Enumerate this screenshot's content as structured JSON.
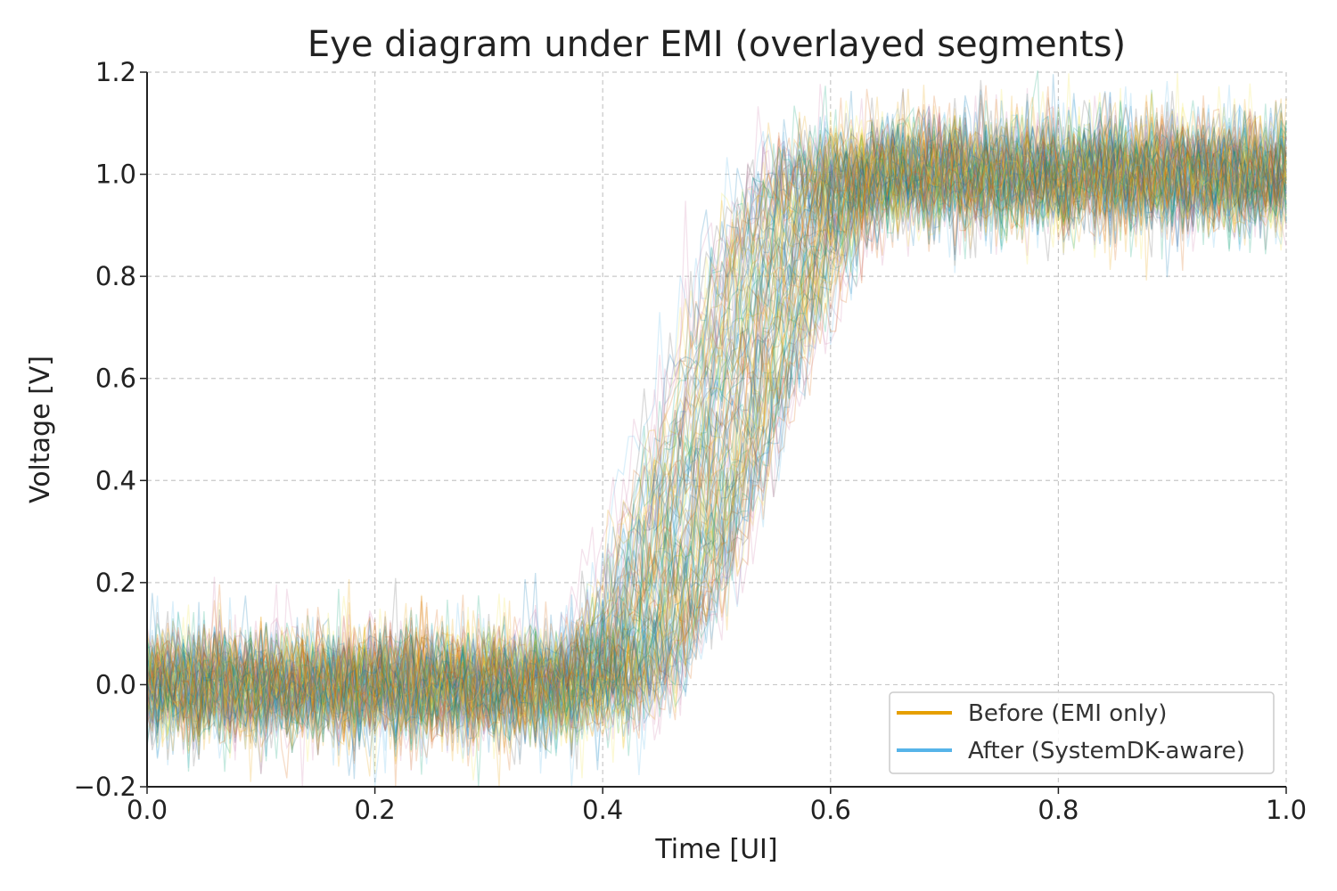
{
  "chart_data": {
    "type": "line",
    "title": "Eye diagram under EMI (overlayed segments)",
    "xlabel": "Time [UI]",
    "ylabel": "Voltage [V]",
    "xlim": [
      0.0,
      1.0
    ],
    "ylim": [
      -0.2,
      1.2
    ],
    "xticks": [
      "0.0",
      "0.2",
      "0.4",
      "0.6",
      "0.8",
      "1.0"
    ],
    "yticks": [
      "−0.2",
      "0.0",
      "0.2",
      "0.4",
      "0.6",
      "0.8",
      "1.0",
      "1.2"
    ],
    "grid": true,
    "legend_position": "lower-right",
    "series": [
      {
        "name": "Before (EMI only)",
        "color": "#E69F00",
        "segments": 60,
        "low_level": 0.0,
        "high_level": 1.0,
        "noise_std": 0.06,
        "transition_center_range": [
          0.44,
          0.56
        ],
        "transition_width": 0.12
      },
      {
        "name": "After (SystemDK-aware)",
        "color": "#56B4E9",
        "segments": 60,
        "low_level": 0.0,
        "high_level": 1.0,
        "noise_std": 0.05,
        "transition_center_range": [
          0.45,
          0.55
        ],
        "transition_width": 0.12
      }
    ],
    "trace_palette": [
      "#E69F00",
      "#56B4E9",
      "#009E73",
      "#0072B2",
      "#D55E00",
      "#CC79A7",
      "#F0E442",
      "#555555"
    ]
  }
}
